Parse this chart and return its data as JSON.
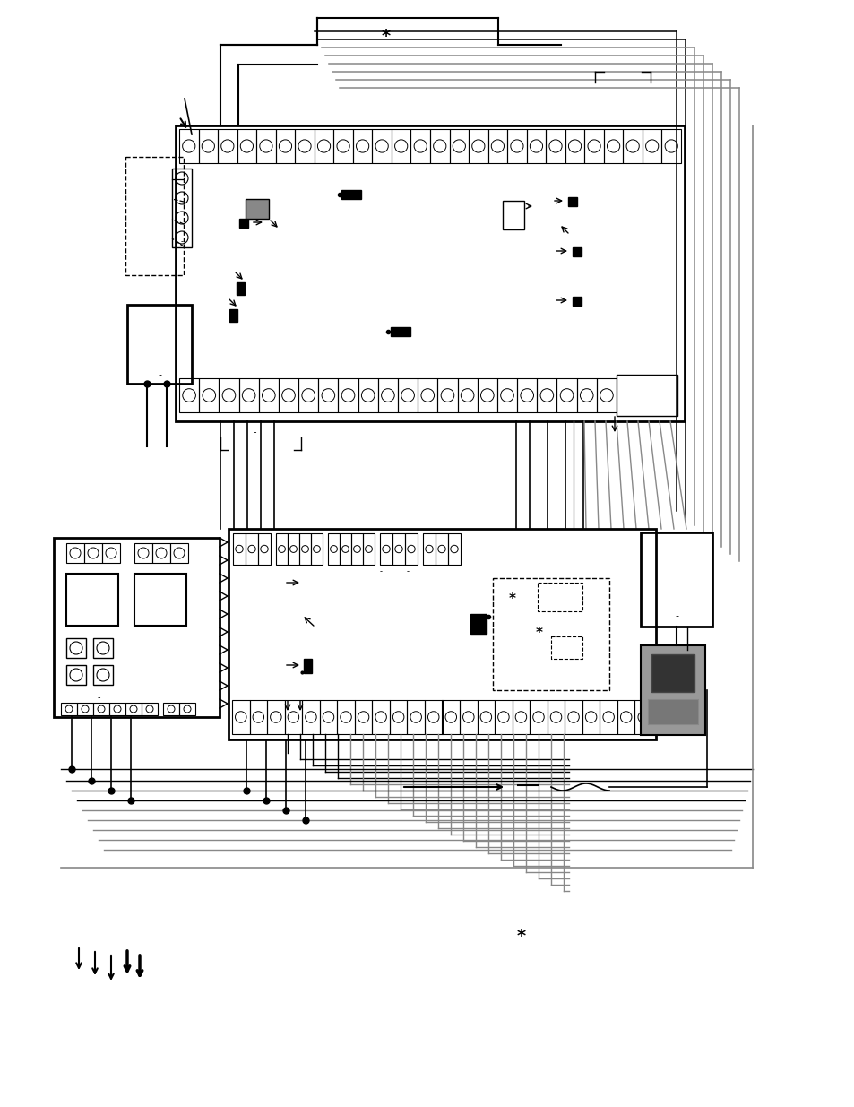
{
  "bg_color": "#ffffff",
  "lc": "#000000",
  "gc": "#888888",
  "lgc": "#aaaaaa"
}
